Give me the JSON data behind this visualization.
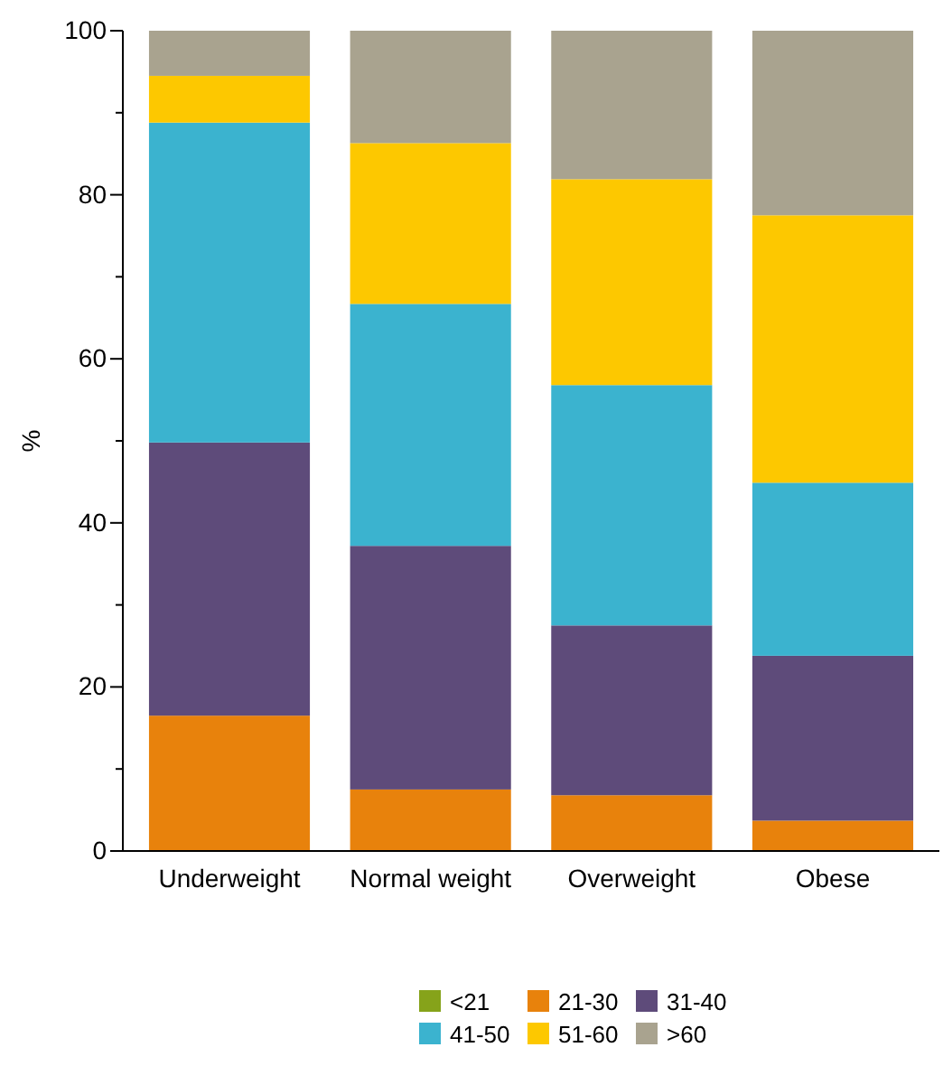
{
  "chart_data": {
    "type": "bar",
    "stacked": true,
    "ylabel": "%",
    "categories": [
      "Underweight",
      "Normal weight",
      "Overweight",
      "Obese"
    ],
    "series": [
      {
        "name": "<21",
        "color": "#86a31a",
        "values": [
          0,
          0,
          0,
          0
        ]
      },
      {
        "name": "21-30",
        "color": "#e8820c",
        "values": [
          16.5,
          7.5,
          6.8,
          3.7
        ]
      },
      {
        "name": "31-40",
        "color": "#5e4b7a",
        "values": [
          33.3,
          29.7,
          20.7,
          20.1
        ]
      },
      {
        "name": "41-50",
        "color": "#3bb3cf",
        "values": [
          39,
          29.5,
          29.3,
          21.1
        ]
      },
      {
        "name": "51-60",
        "color": "#fdc800",
        "values": [
          5.7,
          19.6,
          25.1,
          32.6
        ]
      },
      {
        "name": ">60",
        "color": "#a9a38f",
        "values": [
          5.5,
          13.7,
          18.1,
          22.5
        ]
      }
    ],
    "ylim": [
      0,
      100
    ],
    "yticks": [
      0,
      {
        "value": 10,
        "label": null
      },
      20,
      {
        "value": 30,
        "label": null
      },
      40,
      {
        "value": 50,
        "label": null
      },
      60,
      {
        "value": 70,
        "label": null
      },
      80,
      {
        "value": 90,
        "label": null
      },
      100
    ],
    "legend": "bottom"
  }
}
